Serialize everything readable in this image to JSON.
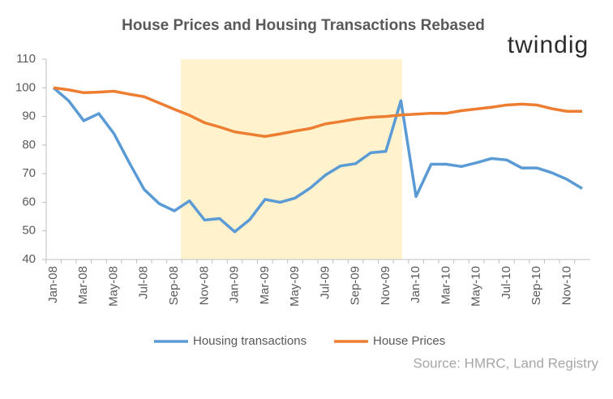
{
  "chart_data": {
    "type": "line",
    "title": "House Prices and Housing Transactions  Rebased",
    "logo": "twindig",
    "source": "Source: HMRC, Land Registry",
    "categories": [
      "Jan-08",
      null,
      "Mar-08",
      null,
      "May-08",
      null,
      "Jul-08",
      null,
      "Sep-08",
      null,
      "Nov-08",
      null,
      "Jan-09",
      null,
      "Mar-09",
      null,
      "May-09",
      null,
      "Jul-09",
      null,
      "Sep-09",
      null,
      "Nov-09",
      null,
      "Jan-10",
      null,
      "Mar-10",
      null,
      "May-10",
      null,
      "Jul-10",
      null,
      "Sep-10",
      null,
      "Nov-10",
      null
    ],
    "series": [
      {
        "name": "Housing transactions",
        "color": "#5b9bd5",
        "values": [
          100,
          95.5,
          88.5,
          91,
          84,
          74,
          64.5,
          59.5,
          57,
          60.5,
          53.8,
          54.3,
          49.7,
          54,
          61,
          60,
          61.5,
          65,
          69.5,
          72.7,
          73.5,
          77.3,
          77.8,
          95.5,
          62,
          73.3,
          73.3,
          72.5,
          73.8,
          75.3,
          74.8,
          72,
          72,
          70.3,
          68,
          64.8
        ]
      },
      {
        "name": "House Prices",
        "color": "#ed7d31",
        "values": [
          100,
          99.3,
          98.3,
          98.5,
          98.8,
          97.8,
          96.9,
          94.7,
          92.5,
          90.4,
          87.8,
          86.3,
          84.6,
          83.8,
          83,
          83.9,
          84.9,
          85.8,
          87.4,
          88.2,
          89.1,
          89.7,
          90,
          90.5,
          90.8,
          91.1,
          91.1,
          92,
          92.6,
          93.2,
          94,
          94.3,
          94,
          92.7,
          91.8,
          91.8
        ]
      }
    ],
    "ylim": [
      40,
      110
    ],
    "yticks": [
      40,
      50,
      60,
      70,
      80,
      90,
      100,
      110
    ],
    "grid": false,
    "legend": "bottom"
  }
}
